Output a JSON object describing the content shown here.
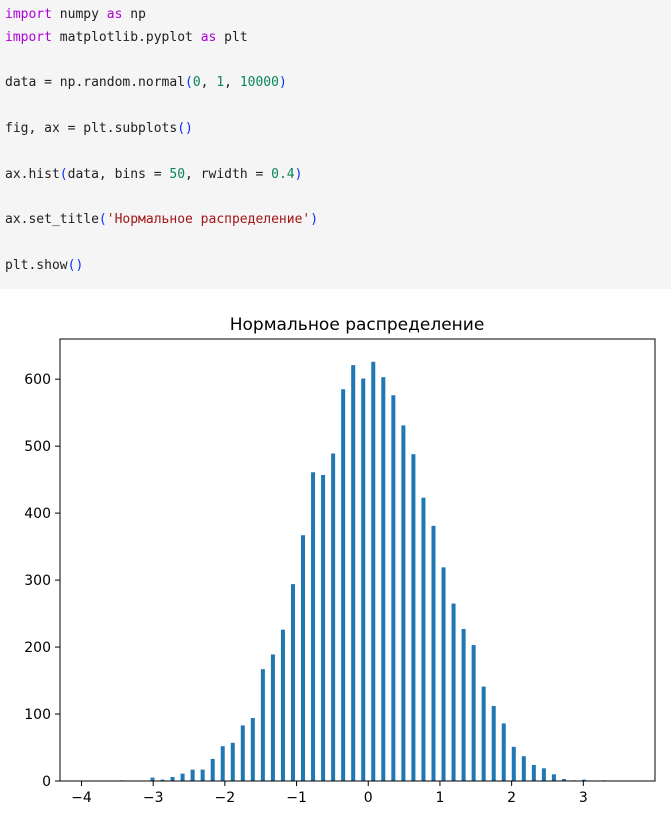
{
  "code": {
    "line1": {
      "t1": "import",
      "t2": " numpy ",
      "t3": "as",
      "t4": " np"
    },
    "line2": {
      "t1": "import",
      "t2": " matplotlib.pyplot ",
      "t3": "as",
      "t4": " plt"
    },
    "line3": {
      "t1": "data = np.random.normal",
      "t2": "(",
      "t3": "0",
      "t4": ", ",
      "t5": "1",
      "t6": ", ",
      "t7": "10000",
      "t8": ")"
    },
    "line4": {
      "t1": "fig, ax = plt.subplots",
      "t2": "()"
    },
    "line5": {
      "t1": "ax.hist",
      "t2": "(",
      "t3": "data, bins = ",
      "t4": "50",
      "t5": ", rwidth = ",
      "t6": "0.4",
      "t7": ")"
    },
    "line6": {
      "t1": "ax.set_title",
      "t2": "(",
      "t3": "'Нормальное распределение'",
      "t4": ")"
    },
    "line7": {
      "t1": "plt.show",
      "t2": "()"
    }
  },
  "colors": {
    "code_bg": "#f5f5f5",
    "keyword": "#af00db",
    "number": "#098658",
    "string": "#a31515",
    "paren": "#0431fa",
    "bar": "#1f77b4"
  },
  "chart_data": {
    "type": "bar",
    "title": "Нормальное распределение",
    "xlabel": "",
    "ylabel": "",
    "xlim": [
      -4.3,
      4.0
    ],
    "ylim": [
      0,
      660
    ],
    "xticks": [
      -4,
      -3,
      -2,
      -1,
      0,
      1,
      2,
      3
    ],
    "xtick_labels": [
      "−4",
      "−3",
      "−2",
      "−1",
      "0",
      "1",
      "2",
      "3"
    ],
    "yticks": [
      0,
      100,
      200,
      300,
      400,
      500,
      600
    ],
    "ytick_labels": [
      "0",
      "100",
      "200",
      "300",
      "400",
      "500",
      "600"
    ],
    "grid": false,
    "bin_edge_start": -3.5,
    "bin_width": 0.14,
    "rwidth": 0.4,
    "values": [
      1,
      0,
      0,
      5,
      2,
      6,
      11,
      17,
      17,
      33,
      52,
      57,
      83,
      94,
      167,
      189,
      226,
      294,
      367,
      461,
      457,
      489,
      585,
      621,
      601,
      626,
      603,
      576,
      531,
      488,
      423,
      381,
      319,
      265,
      227,
      203,
      141,
      112,
      86,
      51,
      37,
      24,
      19,
      10,
      3,
      1,
      2,
      0,
      1,
      0
    ]
  }
}
